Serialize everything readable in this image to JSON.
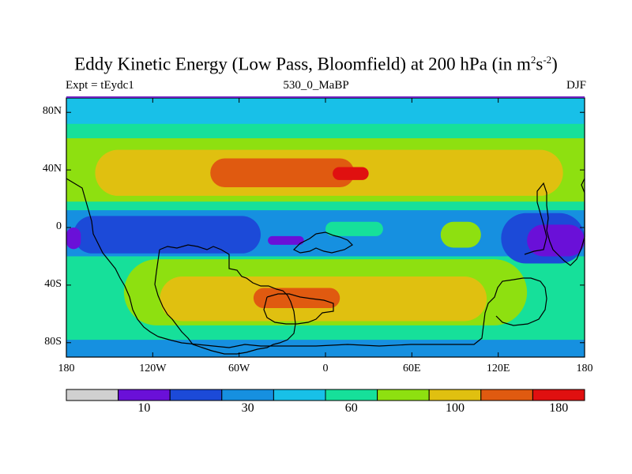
{
  "title": {
    "main": "Eddy Kinetic Energy (Low Pass, Bloomfield) at 200 hPa (in m",
    "unit_sup1": "2",
    "unit_mid": "s",
    "unit_sup2": "-2",
    "unit_end": ")"
  },
  "subtitle": {
    "left": "Expt = tEydc1",
    "center": "530_0_MaBP",
    "right": "DJF"
  },
  "axes": {
    "lat_labels": [
      "80N",
      "40N",
      "0",
      "40S",
      "80S"
    ],
    "lat_values": [
      80,
      40,
      0,
      -40,
      -80
    ],
    "lon_labels": [
      "180",
      "120W",
      "60W",
      "0",
      "60E",
      "120E",
      "180"
    ],
    "lon_values": [
      -180,
      -120,
      -60,
      0,
      60,
      120,
      180
    ],
    "lat_range": [
      -90,
      90
    ],
    "lon_range": [
      -180,
      180
    ]
  },
  "colorbar": {
    "colors": [
      "#d0d0d0",
      "#6a10d8",
      "#1c4ad8",
      "#1690e0",
      "#18c0e8",
      "#16e09a",
      "#8ee010",
      "#e0c010",
      "#e05a10",
      "#e01010"
    ],
    "labels": [
      {
        "text": "10",
        "after_box": 1
      },
      {
        "text": "30",
        "after_box": 3
      },
      {
        "text": "60",
        "after_box": 5
      },
      {
        "text": "100",
        "after_box": 7
      },
      {
        "text": "180",
        "after_box": 9
      }
    ]
  },
  "field": {
    "background_level": 3,
    "regions": [
      {
        "level": 4,
        "lat": [
          -42,
          58
        ],
        "lon": [
          -180,
          180
        ]
      },
      {
        "level": 5,
        "lat": [
          -78,
          84
        ],
        "lon": [
          -180,
          180
        ]
      },
      {
        "level": 4,
        "lat": [
          72,
          90
        ],
        "lon": [
          -180,
          180
        ]
      },
      {
        "level": 5,
        "lat": [
          12,
          68
        ],
        "lon": [
          -180,
          180
        ]
      },
      {
        "level": 6,
        "lat": [
          18,
          62
        ],
        "lon": [
          -180,
          180
        ]
      },
      {
        "level": 7,
        "lat": [
          22,
          54
        ],
        "lon": [
          -160,
          165
        ]
      },
      {
        "level": 8,
        "lat": [
          28,
          48
        ],
        "lon": [
          -80,
          20
        ]
      },
      {
        "level": 9,
        "lat": [
          33,
          42
        ],
        "lon": [
          5,
          30
        ]
      },
      {
        "level": 3,
        "lat": [
          -20,
          12
        ],
        "lon": [
          -180,
          180
        ]
      },
      {
        "level": 2,
        "lat": [
          -18,
          8
        ],
        "lon": [
          -175,
          -45
        ]
      },
      {
        "level": 1,
        "lat": [
          -15,
          0
        ],
        "lon": [
          -180,
          -170
        ]
      },
      {
        "level": 1,
        "lat": [
          -12,
          -6
        ],
        "lon": [
          -40,
          -15
        ]
      },
      {
        "level": 2,
        "lat": [
          -25,
          10
        ],
        "lon": [
          122,
          180
        ]
      },
      {
        "level": 1,
        "lat": [
          -20,
          2
        ],
        "lon": [
          140,
          180
        ]
      },
      {
        "level": 6,
        "lat": [
          -14,
          4
        ],
        "lon": [
          80,
          108
        ]
      },
      {
        "level": 5,
        "lat": [
          -6,
          4
        ],
        "lon": [
          0,
          40
        ]
      },
      {
        "level": 5,
        "lat": [
          -62,
          -35
        ],
        "lon": [
          -180,
          180
        ]
      },
      {
        "level": 6,
        "lat": [
          -68,
          -22
        ],
        "lon": [
          -140,
          140
        ]
      },
      {
        "level": 7,
        "lat": [
          -65,
          -34
        ],
        "lon": [
          -115,
          112
        ]
      },
      {
        "level": 8,
        "lat": [
          -56,
          -42
        ],
        "lon": [
          -50,
          10
        ]
      }
    ]
  }
}
